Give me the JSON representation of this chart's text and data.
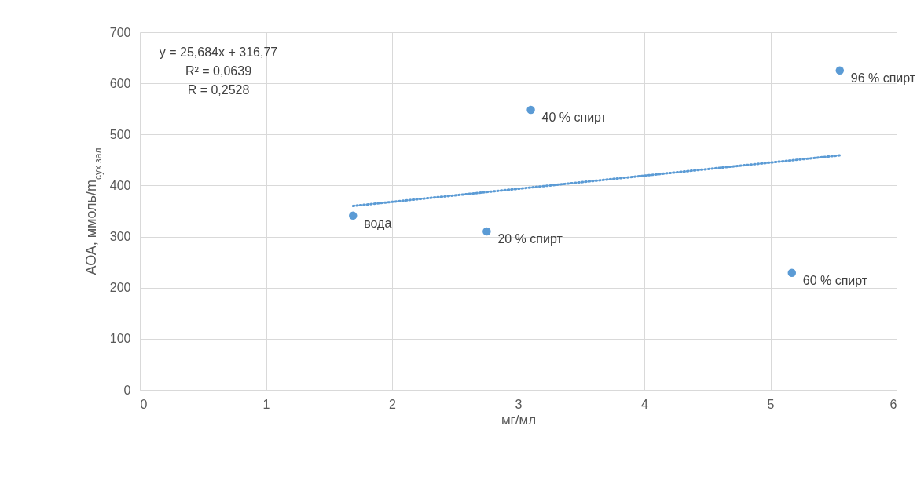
{
  "chart_data": {
    "type": "scatter",
    "xlabel": "мг/мл",
    "ylabel": "АОА, ммоль/m$_{сух зал}$",
    "xlim": [
      0,
      6
    ],
    "xticks": [
      0,
      1,
      2,
      3,
      4,
      5,
      6
    ],
    "ylim": [
      0,
      700
    ],
    "yticks": [
      0,
      100,
      200,
      300,
      400,
      500,
      600,
      700
    ],
    "grid": true,
    "marker": "circle",
    "series": [
      {
        "color": "#5b9bd5",
        "x": [
          1.69,
          2.75,
          3.1,
          5.17,
          5.55
        ],
        "values": [
          341,
          310,
          548,
          229,
          625
        ]
      },
      {
        "type": "line",
        "color": "#5b9bd5",
        "line_style": "dotted",
        "marker": "none",
        "x": [
          1.69,
          5.55
        ],
        "values": [
          360,
          459
        ]
      }
    ],
    "annotations": [
      {
        "text": "вода",
        "x": 1.69,
        "y": 341
      },
      {
        "text": "20 % спирт",
        "x": 2.75,
        "y": 310
      },
      {
        "text": "40 % спирт",
        "x": 3.1,
        "y": 548
      },
      {
        "text": "60 % спирт",
        "x": 5.17,
        "y": 229
      },
      {
        "text": "96 % спирт",
        "x": 5.55,
        "y": 625
      },
      "y = 25,684x + 316,77",
      "R² = 0,0639",
      "R = 0,2528"
    ]
  }
}
